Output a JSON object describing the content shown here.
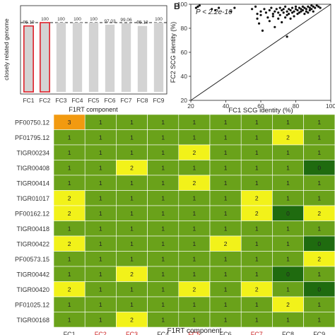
{
  "chart_data": [
    {
      "type": "bar",
      "ylabel": "closely related genome",
      "xlabel": "F1RT component",
      "categories": [
        "FC1",
        "FC2",
        "FC3",
        "FC4",
        "FC5",
        "FC6",
        "FC7",
        "FC8",
        "FC9"
      ],
      "values": [
        95.19,
        100,
        100,
        100,
        100,
        97.03,
        99.06,
        95.18,
        100
      ],
      "value_labels": [
        "95.19",
        "100",
        "100",
        "100",
        "100",
        "97.03",
        "99.06",
        "95.18",
        "100"
      ],
      "ylim": [
        0,
        100
      ],
      "reference_line": 100,
      "highlighted": [
        "FC1",
        "FC2"
      ],
      "colors": {
        "bar": "#d3d3d3",
        "highlight_outline": "#e0202a"
      }
    },
    {
      "type": "scatter",
      "panel_label": "B",
      "annotation": "P < 2.2e-16",
      "xlabel": "FC1 SCG identity (%)",
      "ylabel": "FC2 SCG identity (%)",
      "xlim": [
        20,
        100
      ],
      "ylim": [
        20,
        100
      ],
      "xticks": [
        "20",
        "40",
        "60",
        "80",
        "100"
      ],
      "yticks": [
        "20",
        "40",
        "60",
        "80",
        "100"
      ],
      "diagonal": true,
      "points": [
        [
          23,
          97
        ],
        [
          24,
          98
        ],
        [
          25,
          99
        ],
        [
          32,
          96
        ],
        [
          34,
          95
        ],
        [
          36,
          97
        ],
        [
          43,
          94
        ],
        [
          45,
          97
        ],
        [
          55,
          96
        ],
        [
          57,
          98
        ],
        [
          58,
          92
        ],
        [
          58,
          88
        ],
        [
          59,
          84
        ],
        [
          60,
          94
        ],
        [
          60,
          91
        ],
        [
          61,
          78
        ],
        [
          62,
          96
        ],
        [
          63,
          93
        ],
        [
          64,
          89
        ],
        [
          65,
          95
        ],
        [
          65,
          86
        ],
        [
          66,
          97
        ],
        [
          67,
          92
        ],
        [
          67,
          90
        ],
        [
          68,
          94
        ],
        [
          68,
          81
        ],
        [
          69,
          96
        ],
        [
          70,
          93
        ],
        [
          70,
          88
        ],
        [
          71,
          97
        ],
        [
          71,
          91
        ],
        [
          72,
          95
        ],
        [
          72,
          85
        ],
        [
          73,
          93
        ],
        [
          73,
          96
        ],
        [
          74,
          89
        ],
        [
          74,
          98
        ],
        [
          75,
          94
        ],
        [
          75,
          91
        ],
        [
          75,
          73
        ],
        [
          76,
          96
        ],
        [
          76,
          92
        ],
        [
          77,
          95
        ],
        [
          77,
          88
        ],
        [
          78,
          97
        ],
        [
          78,
          93
        ],
        [
          79,
          94
        ],
        [
          79,
          90
        ],
        [
          80,
          96
        ],
        [
          80,
          98
        ],
        [
          81,
          95
        ],
        [
          81,
          92
        ],
        [
          82,
          97
        ],
        [
          82,
          93
        ],
        [
          83,
          94
        ],
        [
          83,
          96
        ],
        [
          84,
          98
        ],
        [
          84,
          95
        ],
        [
          85,
          97
        ],
        [
          85,
          92
        ],
        [
          86,
          96
        ],
        [
          86,
          94
        ],
        [
          87,
          98
        ],
        [
          87,
          93
        ],
        [
          88,
          97
        ],
        [
          88,
          95
        ],
        [
          89,
          96
        ],
        [
          89,
          99
        ],
        [
          90,
          98
        ],
        [
          90,
          94
        ],
        [
          91,
          97
        ],
        [
          92,
          99
        ],
        [
          93,
          98
        ],
        [
          94,
          97
        ]
      ]
    },
    {
      "type": "heatmap",
      "xlabel": "F1RT component",
      "columns": [
        "FC1",
        "FC2",
        "FC3",
        "FC4",
        "FC5",
        "FC6",
        "FC7",
        "FC8",
        "FC9"
      ],
      "highlight_columns": [
        "FC2",
        "FC3",
        "FC5",
        "FC7"
      ],
      "rows": [
        "PF00750.12",
        "PF01795.12",
        "TIGR00234",
        "TIGR00408",
        "TIGR00414",
        "TIGR01017",
        "PF00162.12",
        "TIGR00418",
        "TIGR00422",
        "PF00573.15",
        "TIGR00442",
        "TIGR00420",
        "PF01025.12",
        "TIGR00168"
      ],
      "values": [
        [
          3,
          1,
          1,
          1,
          1,
          1,
          1,
          1,
          1
        ],
        [
          1,
          1,
          1,
          1,
          1,
          1,
          1,
          2,
          1
        ],
        [
          1,
          1,
          1,
          1,
          2,
          1,
          1,
          1,
          1
        ],
        [
          1,
          1,
          2,
          1,
          1,
          1,
          1,
          1,
          0
        ],
        [
          1,
          1,
          1,
          1,
          2,
          1,
          1,
          1,
          1
        ],
        [
          2,
          1,
          1,
          1,
          1,
          1,
          2,
          1,
          1
        ],
        [
          2,
          1,
          1,
          1,
          1,
          1,
          2,
          0,
          2
        ],
        [
          1,
          1,
          1,
          1,
          1,
          1,
          1,
          1,
          1
        ],
        [
          2,
          1,
          1,
          1,
          1,
          2,
          1,
          1,
          0
        ],
        [
          1,
          1,
          1,
          1,
          1,
          1,
          1,
          1,
          2
        ],
        [
          1,
          1,
          2,
          1,
          1,
          1,
          1,
          0,
          1
        ],
        [
          2,
          1,
          1,
          1,
          2,
          1,
          2,
          1,
          0
        ],
        [
          1,
          1,
          1,
          1,
          1,
          1,
          1,
          2,
          1
        ],
        [
          1,
          1,
          2,
          1,
          1,
          1,
          1,
          1,
          1
        ]
      ],
      "colors": {
        "0": "#1f6b0f",
        "1": "#6aa21a",
        "2": "#f2f21a",
        "3": "#f29a10",
        "text": "#222222",
        "highlight_label": "#cc1f1f",
        "label": "#333333"
      }
    }
  ]
}
